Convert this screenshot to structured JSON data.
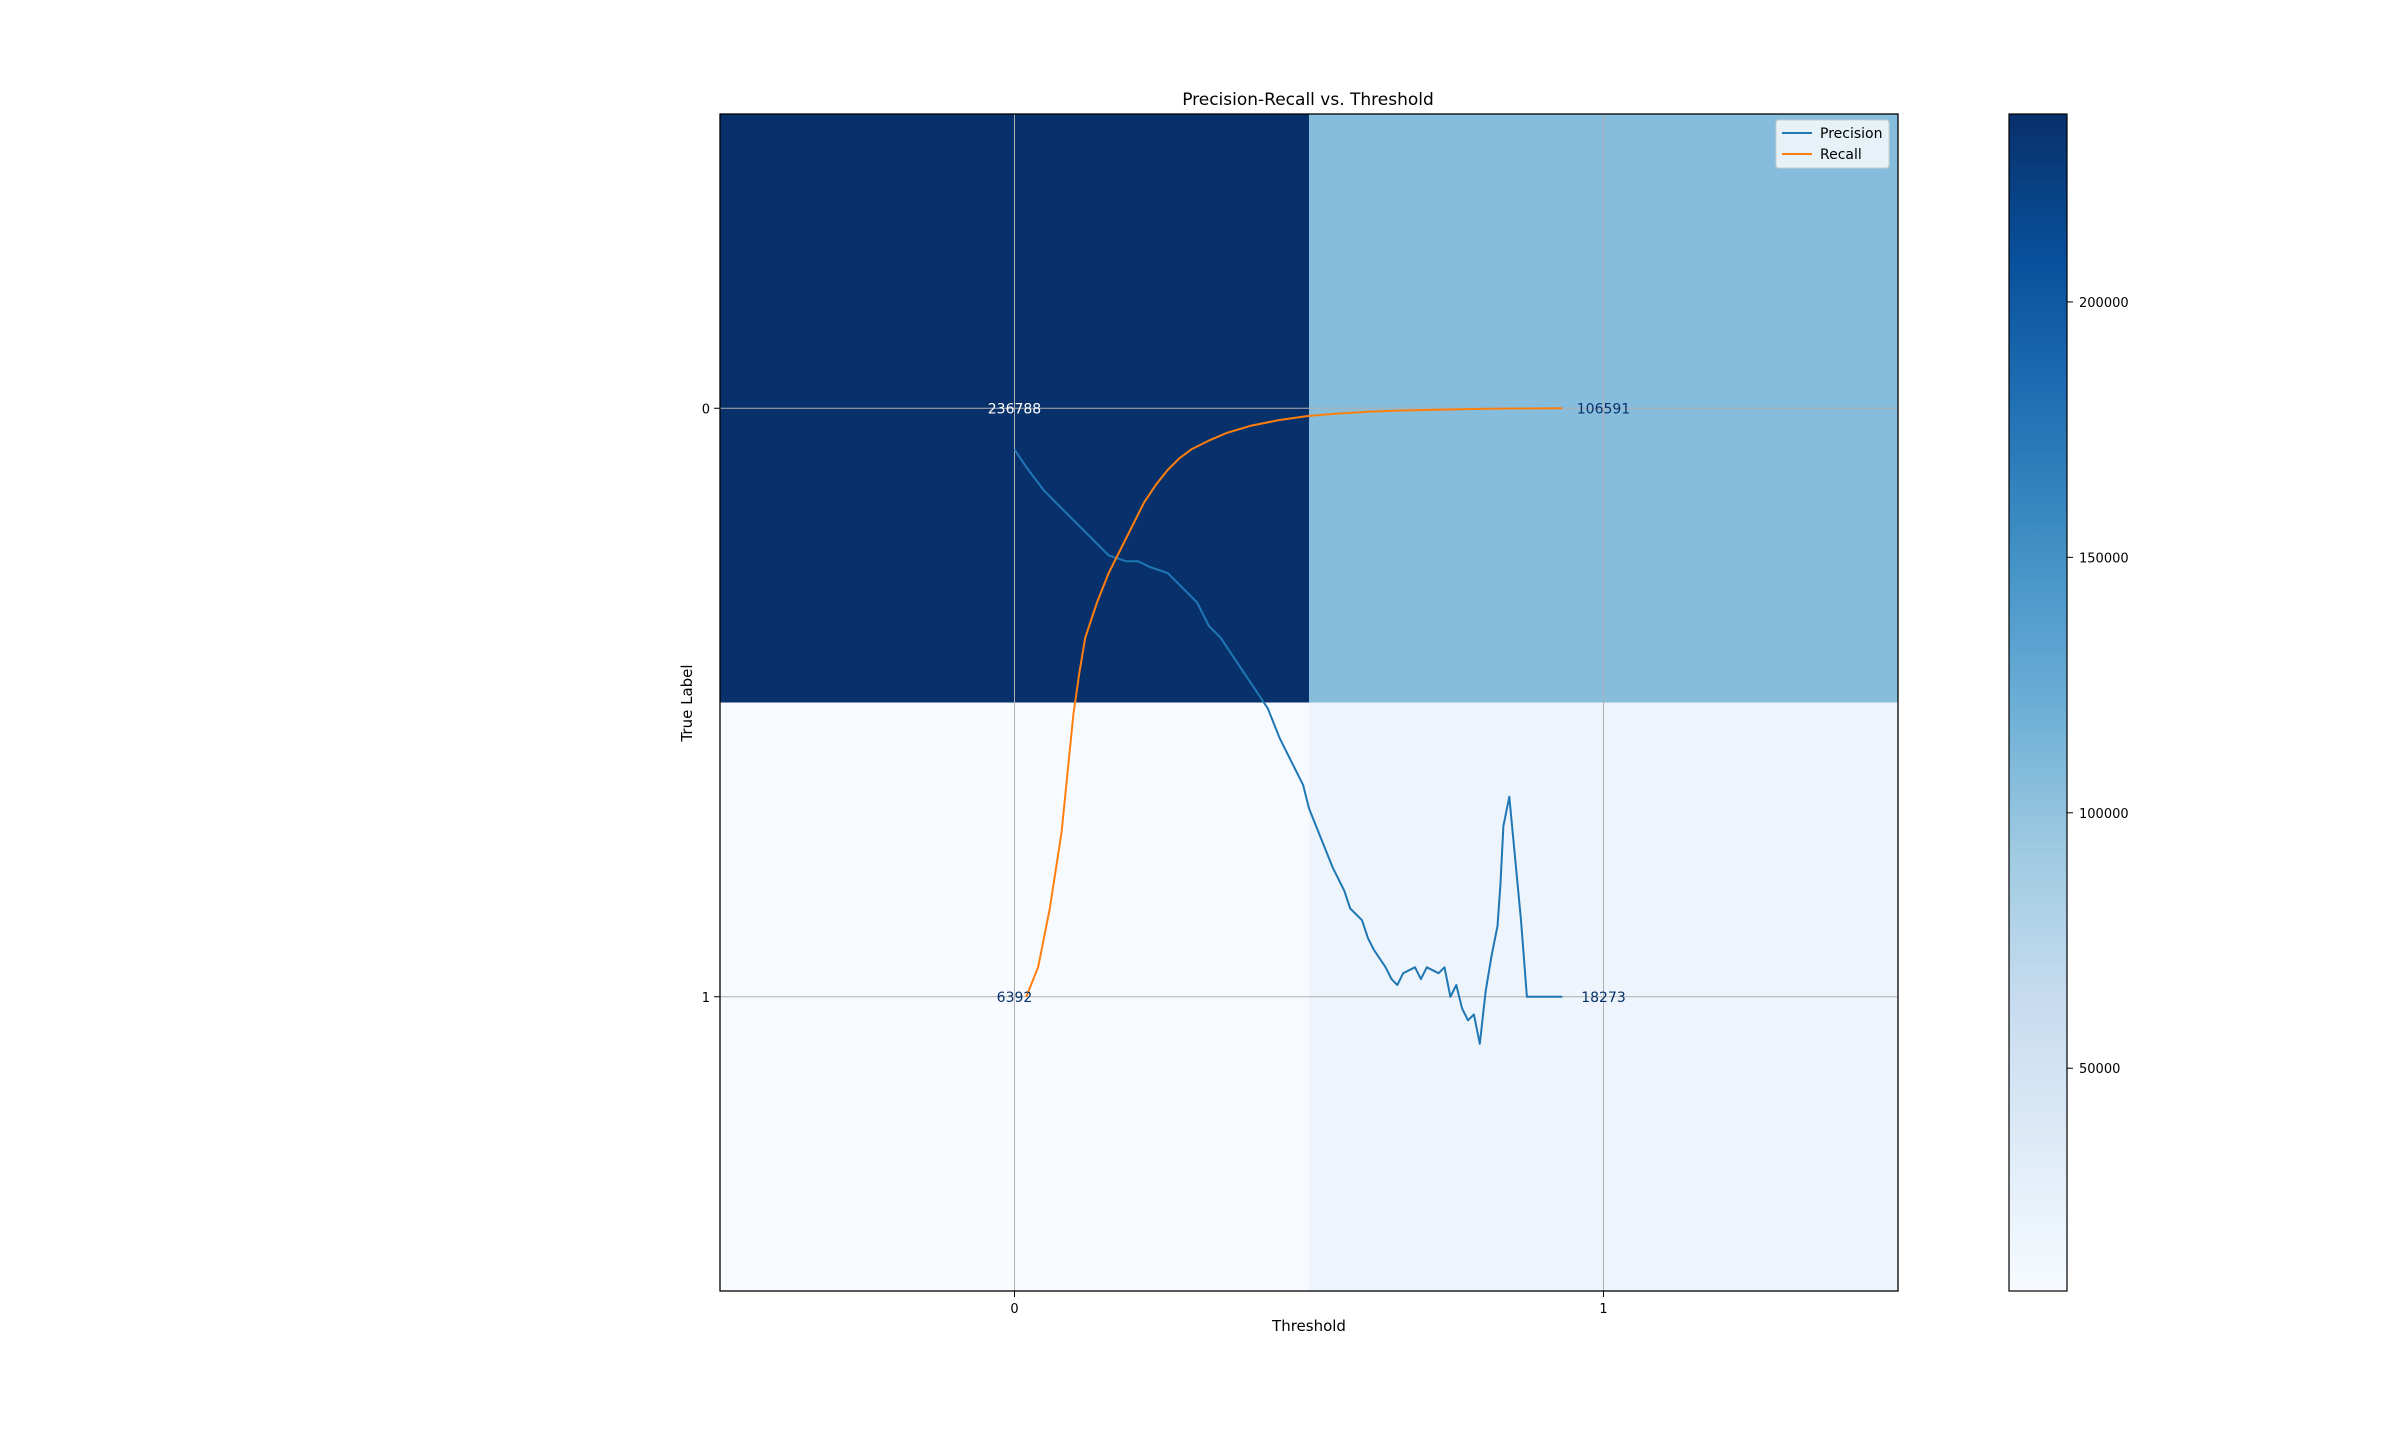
{
  "chart_data": {
    "type": "heatmap",
    "title": "Precision-Recall vs. Threshold",
    "xlabel": "Threshold",
    "ylabel": "True Label",
    "x_ticks": [
      "0",
      "1"
    ],
    "y_ticks": [
      "0",
      "1"
    ],
    "matrix": [
      [
        236788,
        106591
      ],
      [
        6392,
        18273
      ]
    ],
    "cell_labels": [
      [
        "236788",
        "106591"
      ],
      [
        "6392",
        "18273"
      ]
    ],
    "colormap": "Blues",
    "colorbar_ticks": [
      "50000",
      "100000",
      "150000",
      "200000"
    ],
    "colorbar_tick_values": [
      50000,
      100000,
      150000,
      200000
    ],
    "color_range": [
      6392,
      236788
    ],
    "grid": true,
    "legend_position": "upper right",
    "xlim": [
      -0.5,
      1.5
    ],
    "ylim": [
      -0.5,
      1.5
    ],
    "series": [
      {
        "name": "Precision",
        "color": "#1f77b4",
        "x": [
          0.0,
          0.02,
          0.05,
          0.08,
          0.1,
          0.13,
          0.16,
          0.19,
          0.21,
          0.23,
          0.26,
          0.29,
          0.31,
          0.33,
          0.35,
          0.37,
          0.39,
          0.41,
          0.43,
          0.45,
          0.47,
          0.49,
          0.5,
          0.52,
          0.54,
          0.56,
          0.57,
          0.59,
          0.6,
          0.61,
          0.63,
          0.64,
          0.65,
          0.66,
          0.68,
          0.69,
          0.7,
          0.72,
          0.73,
          0.74,
          0.75,
          0.76,
          0.77,
          0.78,
          0.79,
          0.8,
          0.81,
          0.82,
          0.825,
          0.83,
          0.84,
          0.86,
          0.87,
          0.88,
          0.89,
          0.9,
          0.92,
          0.93
        ],
        "y": [
          0.07,
          0.1,
          0.14,
          0.17,
          0.19,
          0.22,
          0.25,
          0.26,
          0.26,
          0.27,
          0.28,
          0.31,
          0.33,
          0.37,
          0.39,
          0.42,
          0.45,
          0.48,
          0.51,
          0.56,
          0.6,
          0.64,
          0.68,
          0.73,
          0.78,
          0.82,
          0.85,
          0.87,
          0.9,
          0.92,
          0.95,
          0.97,
          0.98,
          0.96,
          0.95,
          0.97,
          0.95,
          0.96,
          0.95,
          1.0,
          0.98,
          1.02,
          1.04,
          1.03,
          1.08,
          0.99,
          0.93,
          0.88,
          0.81,
          0.71,
          0.66,
          0.87,
          1.0,
          1.0,
          1.0,
          1.0,
          1.0,
          1.0
        ]
      },
      {
        "name": "Recall",
        "color": "#ff7f0e",
        "x": [
          0.02,
          0.04,
          0.06,
          0.08,
          0.09,
          0.1,
          0.11,
          0.12,
          0.14,
          0.16,
          0.18,
          0.2,
          0.22,
          0.24,
          0.26,
          0.28,
          0.3,
          0.33,
          0.36,
          0.4,
          0.45,
          0.5,
          0.55,
          0.6,
          0.65,
          0.7,
          0.75,
          0.8,
          0.85,
          0.9,
          0.93
        ],
        "y": [
          1.0,
          0.95,
          0.85,
          0.72,
          0.62,
          0.52,
          0.45,
          0.39,
          0.33,
          0.28,
          0.24,
          0.2,
          0.16,
          0.13,
          0.105,
          0.085,
          0.07,
          0.055,
          0.042,
          0.03,
          0.02,
          0.013,
          0.009,
          0.006,
          0.004,
          0.003,
          0.002,
          0.001,
          0.0005,
          0.0002,
          0.0
        ]
      }
    ]
  }
}
